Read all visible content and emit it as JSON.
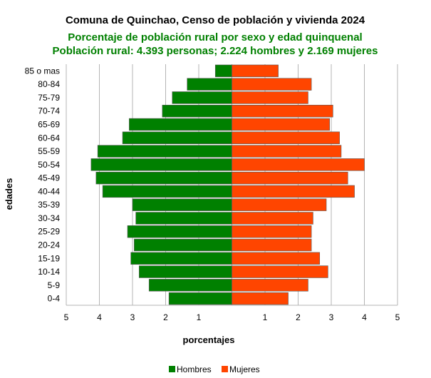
{
  "chart_data": {
    "type": "bar",
    "orientation": "horizontal-population-pyramid",
    "title": "Comuna de Quinchao, Censo de población y vivienda 2024",
    "subtitle_lines": [
      "Porcentaje de población rural por sexo y edad quinquenal",
      "Población rural: 4.393 personas; 2.224 hombres y 2.169 mujeres"
    ],
    "xlabel": "porcentajes",
    "ylabel": "edades",
    "xlim": [
      -5,
      5
    ],
    "x_ticks": [
      "5",
      "4",
      "3",
      "2",
      "1",
      "",
      "1",
      "2",
      "3",
      "4",
      "5"
    ],
    "categories": [
      "0-4",
      "5-9",
      "10-14",
      "15-19",
      "20-24",
      "25-29",
      "30-34",
      "35-39",
      "40-44",
      "45-49",
      "50-54",
      "55-59",
      "60-64",
      "65-69",
      "70-74",
      "75-79",
      "80-84",
      "85 o mas"
    ],
    "series": [
      {
        "name": "Hombres",
        "color": "#008000",
        "values": [
          1.9,
          2.5,
          2.8,
          3.05,
          2.95,
          3.15,
          2.9,
          3.0,
          3.9,
          4.1,
          4.25,
          4.05,
          3.3,
          3.1,
          2.1,
          1.8,
          1.35,
          0.5
        ]
      },
      {
        "name": "Mujeres",
        "color": "#FF4500",
        "values": [
          1.7,
          2.3,
          2.9,
          2.65,
          2.4,
          2.4,
          2.45,
          2.85,
          3.7,
          3.5,
          4.0,
          3.3,
          3.25,
          2.95,
          3.05,
          2.3,
          2.4,
          1.4
        ]
      }
    ],
    "grid": true,
    "legend_position": "bottom-center"
  }
}
